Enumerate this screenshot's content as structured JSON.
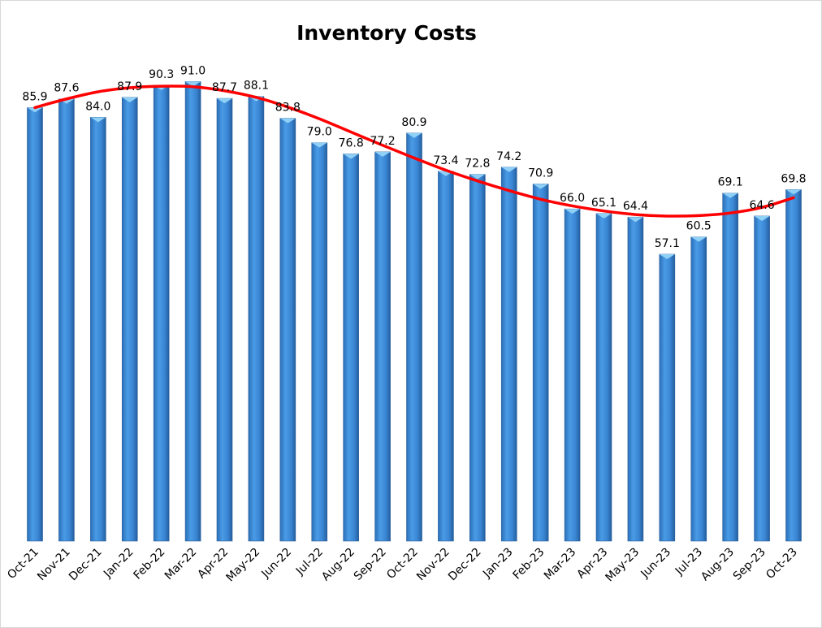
{
  "chart_data": {
    "type": "bar",
    "title": "Inventory Costs",
    "xlabel": "",
    "ylabel": "",
    "ylim": [
      0,
      100
    ],
    "grid": false,
    "legend": "none",
    "categories": [
      "Oct-21",
      "Nov-21",
      "Dec-21",
      "Jan-22",
      "Feb-22",
      "Mar-22",
      "Apr-22",
      "May-22",
      "Jun-22",
      "Jul-22",
      "Aug-22",
      "Sep-22",
      "Oct-22",
      "Nov-22",
      "Dec-22",
      "Jan-23",
      "Feb-23",
      "Mar-23",
      "Apr-23",
      "May-23",
      "Jun-23",
      "Jul-23",
      "Aug-23",
      "Sep-23",
      "Oct-23"
    ],
    "series": [
      {
        "name": "Inventory Costs",
        "type": "bar",
        "color": "#3a8ad8",
        "values": [
          85.9,
          87.6,
          84.0,
          87.9,
          90.3,
          91.0,
          87.7,
          88.1,
          83.8,
          79.0,
          76.8,
          77.2,
          80.9,
          73.4,
          72.8,
          74.2,
          70.9,
          66.0,
          65.1,
          64.4,
          57.1,
          60.5,
          69.1,
          64.6,
          69.8
        ],
        "data_labels": [
          "85.9",
          "87.6",
          "84.0",
          "87.9",
          "90.3",
          "91.0",
          "87.7",
          "88.1",
          "83.8",
          "79.0",
          "76.8",
          "77.2",
          "80.9",
          "73.4",
          "72.8",
          "74.2",
          "70.9",
          "66.0",
          "65.1",
          "64.4",
          "57.1",
          "60.5",
          "69.1",
          "64.6",
          "69.8"
        ]
      },
      {
        "name": "Trendline (polynomial)",
        "type": "line",
        "color": "#ff0000",
        "values": [
          85.9,
          87.6,
          89.0,
          89.8,
          90.1,
          90.0,
          89.2,
          87.9,
          86.0,
          83.7,
          81.1,
          78.5,
          76.0,
          73.6,
          71.5,
          69.6,
          67.9,
          66.6,
          65.6,
          64.9,
          64.6,
          64.7,
          65.2,
          66.3,
          68.2
        ]
      }
    ]
  }
}
